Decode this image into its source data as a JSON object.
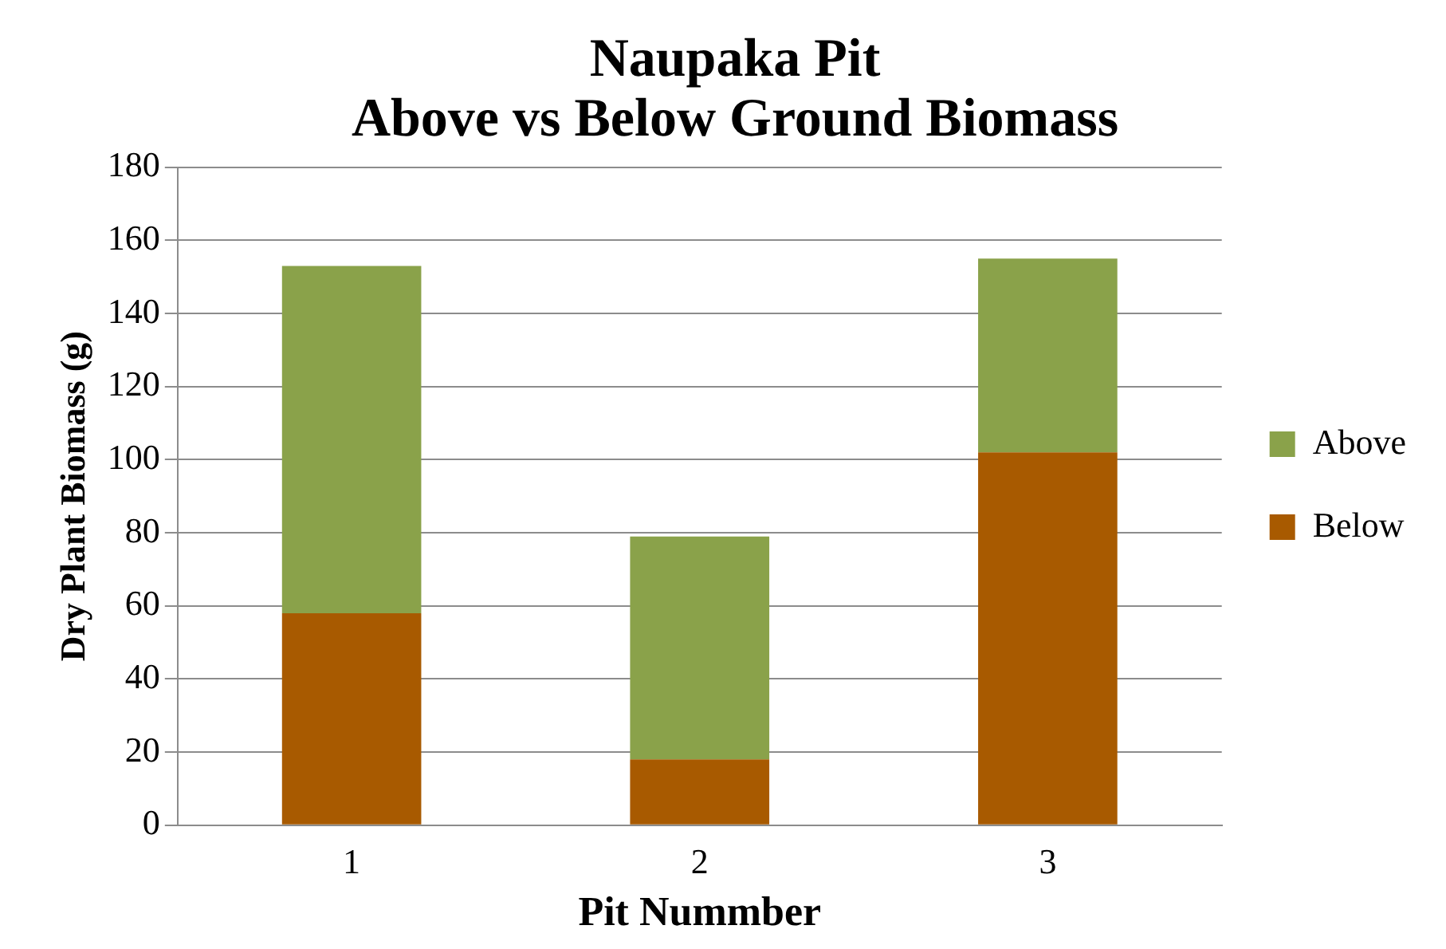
{
  "chart_data": {
    "type": "bar",
    "title": "Naupaka Pit\nAbove vs Below Ground Biomass",
    "xlabel": "Pit Nummber",
    "ylabel": "Dry Plant Biomass (g)",
    "categories": [
      "1",
      "2",
      "3"
    ],
    "series": [
      {
        "name": "Below",
        "color": "#a85a00",
        "values": [
          58,
          18,
          102
        ]
      },
      {
        "name": "Above",
        "color": "#8aa24a",
        "values": [
          95,
          61,
          53
        ]
      }
    ],
    "stacked": true,
    "ylim": [
      0,
      180
    ],
    "yticks": [
      0,
      20,
      40,
      60,
      80,
      100,
      120,
      140,
      160,
      180
    ],
    "grid": "y",
    "legend": "right"
  }
}
